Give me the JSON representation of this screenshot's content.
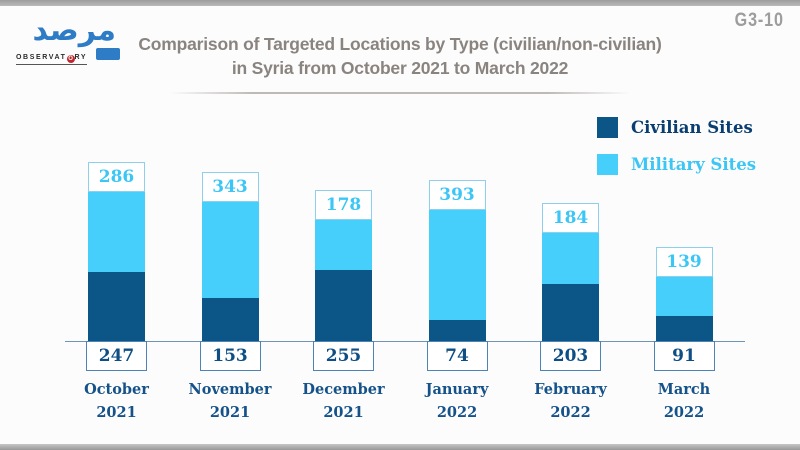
{
  "frame": {
    "badge": "G3-10"
  },
  "logo": {
    "arabic_name": "مرصد",
    "latin_name_left": "OBSERVAT",
    "latin_name_o": "O",
    "latin_name_right": "RY"
  },
  "title": {
    "line1": "Comparison of Targeted Locations by Type (civilian/non-civilian)",
    "line2": "in Syria from October 2021 to March 2022"
  },
  "legend": {
    "items": [
      {
        "label": "Civilian Sites",
        "swatch_color": "#0b5587",
        "text_color": "#0a3e70"
      },
      {
        "label": "Military Sites",
        "swatch_color": "#45cffa",
        "text_color": "#3cc6f5"
      }
    ]
  },
  "chart_data": {
    "type": "bar",
    "stacked": true,
    "title": "Comparison of Targeted Locations by Type (civilian/non-civilian) in Syria from October 2021 to March 2022",
    "categories": [
      {
        "month": "October",
        "year": "2021"
      },
      {
        "month": "November",
        "year": "2021"
      },
      {
        "month": "December",
        "year": "2021"
      },
      {
        "month": "January",
        "year": "2022"
      },
      {
        "month": "February",
        "year": "2022"
      },
      {
        "month": "March",
        "year": "2022"
      }
    ],
    "series": [
      {
        "name": "Civilian Sites",
        "color": "#0b5587",
        "label_color": "#0d4f84",
        "label_border": "#4d84b5",
        "values": [
          247,
          153,
          255,
          74,
          203,
          91
        ]
      },
      {
        "name": "Military Sites",
        "color": "#45cffa",
        "label_color": "#3cc6f5",
        "label_border": "#8ecfec",
        "values": [
          286,
          343,
          178,
          393,
          184,
          139
        ]
      }
    ],
    "value_labels": "shown",
    "legend_position": "top-right",
    "grid": false,
    "baseline": 0
  }
}
